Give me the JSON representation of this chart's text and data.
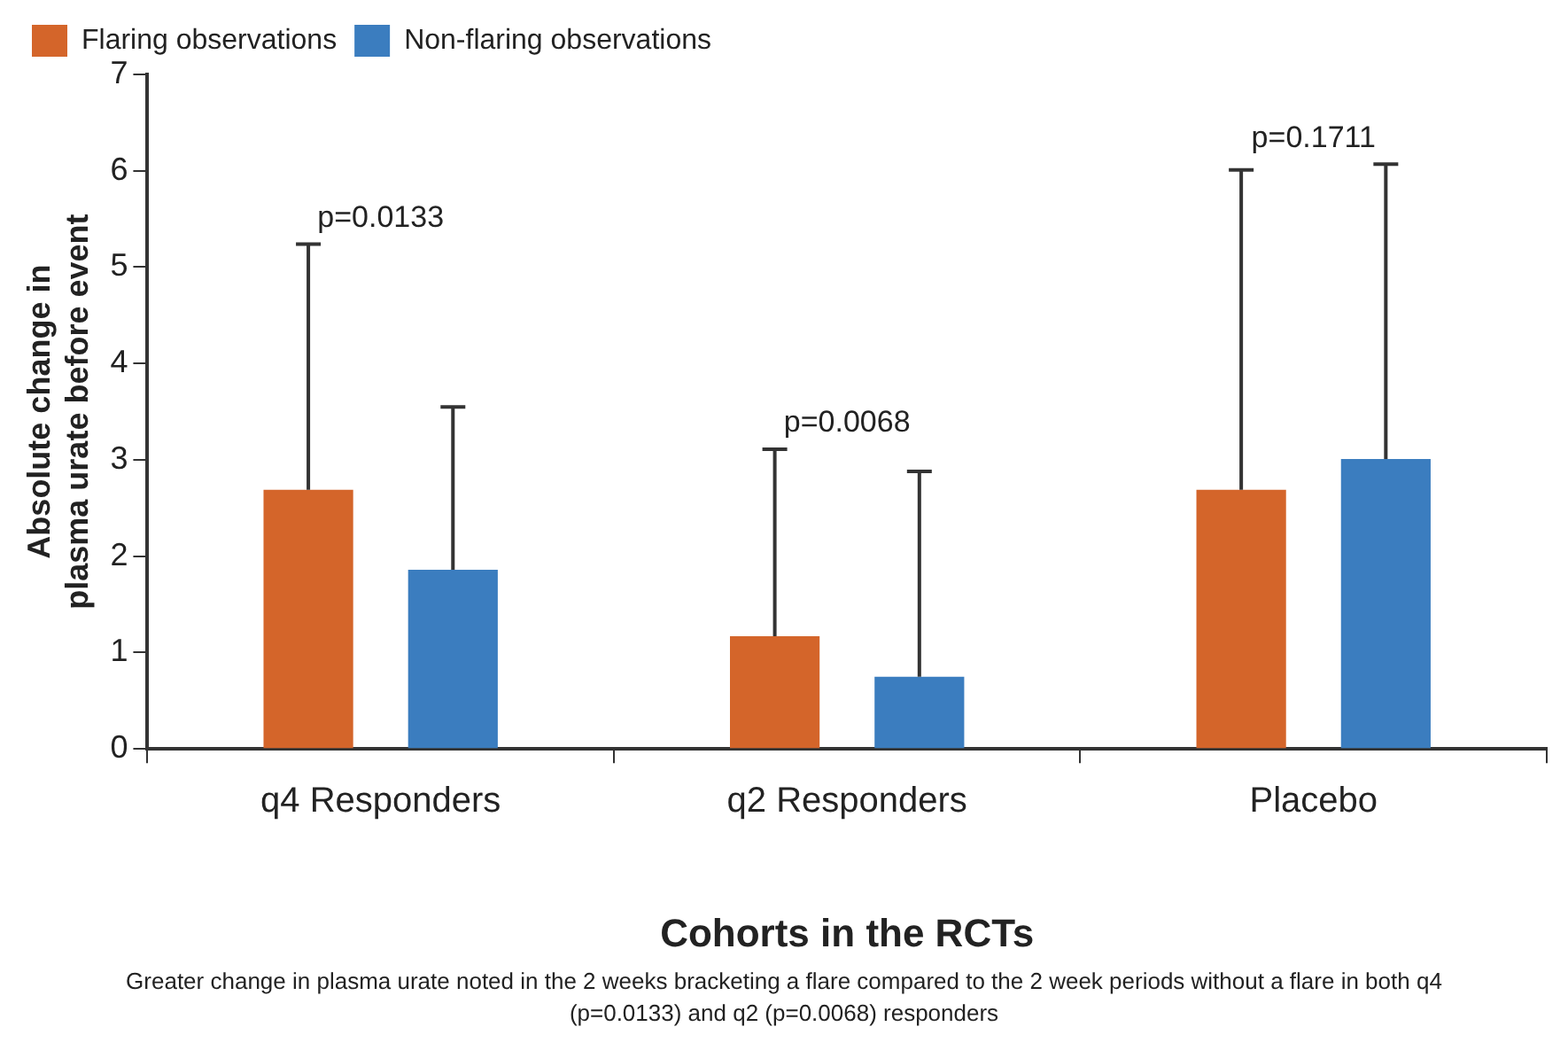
{
  "chart_data": {
    "type": "bar",
    "xlabel": "Cohorts in the RCTs",
    "ylabel": "Absolute change in plasma urate before event",
    "categories": [
      "q4 Responders",
      "q2 Responders",
      "Placebo"
    ],
    "series": [
      {
        "name": "Flaring observations",
        "color": "#d4652a",
        "values": [
          2.69,
          1.17,
          2.69
        ],
        "errors": [
          [
            2.69,
            5.24
          ],
          [
            1.17,
            3.11
          ],
          [
            2.69,
            6.01
          ]
        ]
      },
      {
        "name": "Non-flaring observations",
        "color": "#3b7dbf",
        "values": [
          1.86,
          0.75,
          3.01
        ],
        "errors": [
          [
            1.86,
            3.55
          ],
          [
            0.75,
            2.88
          ],
          [
            3.01,
            6.07
          ]
        ]
      }
    ],
    "ylim": [
      0,
      7
    ],
    "yticks": [
      0,
      1,
      2,
      3,
      4,
      5,
      6,
      7
    ],
    "grid": false,
    "legend": "top left",
    "annotations": [
      "p=0.0133",
      "p=0.0068",
      "p=0.1711",
      "Greater change in plasma urate noted in the 2 weeks bracketing a flare compared to the 2 week periods without a flare in both q4 (p=0.0133) and q2 (p=0.0068) responders"
    ]
  }
}
